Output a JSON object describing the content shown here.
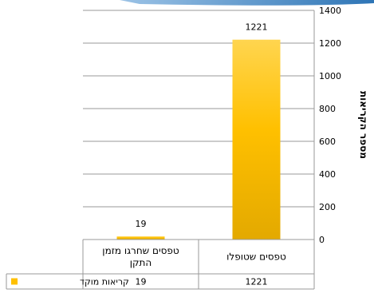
{
  "chart_data": {
    "type": "bar",
    "orientation": "rtl",
    "categories": [
      "טפסים שטופלו",
      "טפסים שחרגו מזמן התקן"
    ],
    "series": [
      {
        "name": "קריאות מוקד",
        "values": [
          1221,
          19
        ],
        "color": "#FFC000"
      }
    ],
    "data_labels": [
      "1221",
      "19"
    ],
    "ylabel": "מספר הקריאות",
    "ylim": [
      0,
      1400
    ],
    "yticks": [
      "0",
      "200",
      "400",
      "600",
      "800",
      "1000",
      "1200",
      "1400"
    ],
    "grid": true,
    "y_axis_side": "right",
    "legend_placement": "data-table-left",
    "data_table": true,
    "colors": {
      "bar": "#FFC000",
      "bar_light": "#FFD966",
      "bar_dark": "#E6AC00",
      "top_accent": "#3B82C4"
    }
  }
}
